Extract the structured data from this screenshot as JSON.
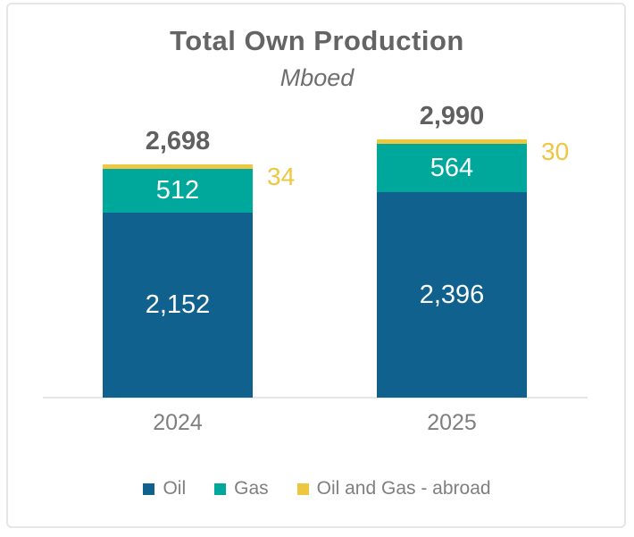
{
  "page": {
    "background": "#FFFFFF",
    "card_border_color": "#E6E6E6"
  },
  "chart_data": {
    "type": "bar",
    "stacked": true,
    "title": "Total Own Production",
    "units_label": "Mboed",
    "categories": [
      "2024",
      "2025"
    ],
    "series": [
      {
        "name": "Oil",
        "color": "#11618E",
        "values": [
          2152,
          2396
        ],
        "labels": [
          "2,152",
          "2,396"
        ],
        "label_placement": "inside"
      },
      {
        "name": "Gas",
        "color": "#00A89B",
        "values": [
          512,
          564
        ],
        "labels": [
          "512",
          "564"
        ],
        "label_placement": "inside"
      },
      {
        "name": "Oil and Gas - abroad",
        "color": "#EFC63F",
        "values": [
          34,
          30
        ],
        "labels": [
          "34",
          "30"
        ],
        "label_placement": "outside-right"
      }
    ],
    "totals": {
      "values": [
        2698,
        2990
      ],
      "labels": [
        "2,698",
        "2,990"
      ]
    },
    "grid": false,
    "y_axis": "hidden",
    "legend_position": "bottom",
    "colors": {
      "axis_line": "#E6E6E6",
      "title_text": "#646464",
      "total_label_text": "#606060",
      "category_label_text": "#7F7F7F",
      "legend_text": "#7F7F7F",
      "inside_label_text": "#FFFFFF",
      "outside_label_text": "#EFC63F"
    }
  }
}
